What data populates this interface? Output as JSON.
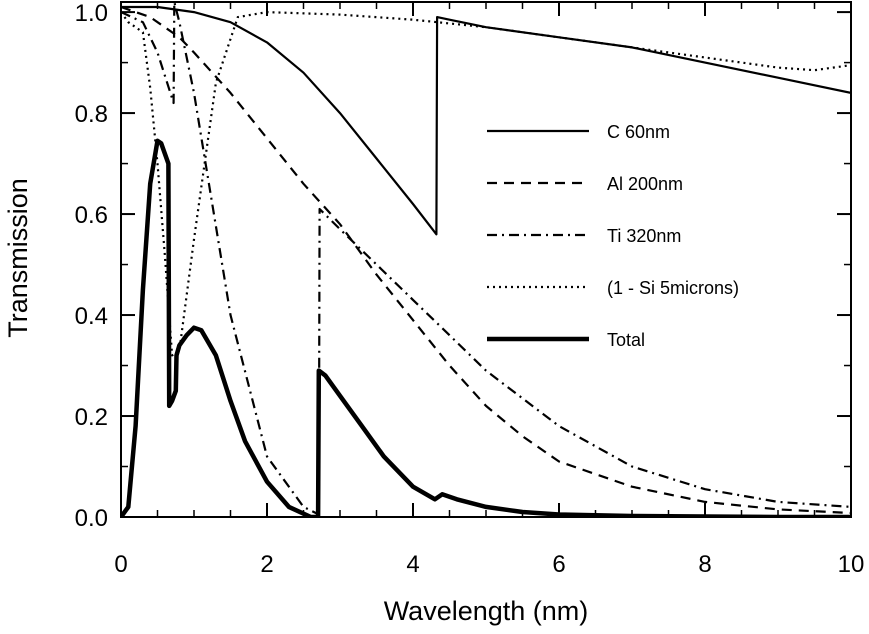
{
  "chart_data": {
    "type": "line",
    "title": "",
    "xlabel": "Wavelength (nm)",
    "ylabel": "Transmission",
    "xlim": [
      0,
      10
    ],
    "ylim": [
      0,
      1.02
    ],
    "grid": false,
    "legend_position": "center-right",
    "x_ticks": [
      {
        "value": 0,
        "label": "0"
      },
      {
        "value": 2,
        "label": "2"
      },
      {
        "value": 4,
        "label": "4"
      },
      {
        "value": 6,
        "label": "6"
      },
      {
        "value": 8,
        "label": "8"
      },
      {
        "value": 10,
        "label": "10"
      }
    ],
    "y_ticks": [
      {
        "value": 0.0,
        "label": "0.0"
      },
      {
        "value": 0.2,
        "label": "0.2"
      },
      {
        "value": 0.4,
        "label": "0.4"
      },
      {
        "value": 0.6,
        "label": "0.6"
      },
      {
        "value": 0.8,
        "label": "0.8"
      },
      {
        "value": 1.0,
        "label": "1.0"
      }
    ],
    "series": [
      {
        "name": "C 60nm",
        "style": "solid",
        "color": "#000000",
        "x": [
          0.0,
          0.5,
          1.0,
          1.5,
          2.0,
          2.5,
          3.0,
          3.5,
          4.0,
          4.32,
          4.33,
          4.5,
          5.0,
          6.0,
          7.0,
          8.0,
          9.0,
          10.0
        ],
        "y": [
          1.01,
          1.01,
          1.0,
          0.98,
          0.94,
          0.88,
          0.8,
          0.71,
          0.62,
          0.56,
          0.99,
          0.985,
          0.97,
          0.95,
          0.93,
          0.9,
          0.87,
          0.84
        ]
      },
      {
        "name": "Al 200nm",
        "style": "dashed",
        "color": "#000000",
        "x": [
          0.0,
          0.2,
          0.4,
          0.6,
          0.8,
          1.0,
          1.5,
          2.0,
          2.5,
          3.0,
          3.5,
          4.0,
          4.5,
          5.0,
          5.5,
          6.0,
          7.0,
          8.0,
          9.0,
          10.0
        ],
        "y": [
          1.01,
          1.0,
          0.99,
          0.97,
          0.95,
          0.92,
          0.84,
          0.75,
          0.66,
          0.58,
          0.48,
          0.39,
          0.3,
          0.22,
          0.16,
          0.11,
          0.06,
          0.03,
          0.015,
          0.008
        ]
      },
      {
        "name": "Ti 320nm",
        "style": "dashdot",
        "color": "#000000",
        "x": [
          0.0,
          0.3,
          0.5,
          0.72,
          0.73,
          0.8,
          1.0,
          1.5,
          2.0,
          2.5,
          2.71,
          2.72,
          3.0,
          3.5,
          4.0,
          4.5,
          5.0,
          6.0,
          7.0,
          8.0,
          9.0,
          10.0
        ],
        "y": [
          1.0,
          0.98,
          0.92,
          0.82,
          1.02,
          0.98,
          0.84,
          0.4,
          0.12,
          0.02,
          0.005,
          0.61,
          0.57,
          0.5,
          0.43,
          0.36,
          0.29,
          0.18,
          0.1,
          0.055,
          0.03,
          0.02
        ]
      },
      {
        "name": "(1 - Si 5microns)",
        "style": "dotted",
        "color": "#000000",
        "x": [
          0.0,
          0.1,
          0.2,
          0.3,
          0.4,
          0.5,
          0.6,
          0.7,
          0.8,
          1.0,
          1.3,
          1.6,
          2.0,
          3.0,
          4.0,
          5.0,
          6.0,
          7.0,
          8.0,
          9.0,
          9.5,
          10.0
        ],
        "y": [
          1.0,
          0.98,
          0.97,
          0.96,
          0.85,
          0.7,
          0.52,
          0.32,
          0.33,
          0.55,
          0.86,
          0.99,
          1.0,
          0.995,
          0.985,
          0.97,
          0.95,
          0.93,
          0.91,
          0.89,
          0.885,
          0.895
        ]
      },
      {
        "name": "Total",
        "style": "thick",
        "color": "#000000",
        "x": [
          0.0,
          0.1,
          0.2,
          0.3,
          0.4,
          0.5,
          0.55,
          0.6,
          0.65,
          0.66,
          0.7,
          0.75,
          0.76,
          0.8,
          0.9,
          1.0,
          1.1,
          1.3,
          1.5,
          1.7,
          2.0,
          2.3,
          2.6,
          2.7,
          2.71,
          2.8,
          3.0,
          3.3,
          3.6,
          4.0,
          4.3,
          4.4,
          4.6,
          5.0,
          5.5,
          6.0,
          7.0,
          8.0,
          9.0,
          10.0
        ],
        "y": [
          0.0,
          0.02,
          0.18,
          0.45,
          0.66,
          0.745,
          0.74,
          0.72,
          0.7,
          0.22,
          0.23,
          0.25,
          0.32,
          0.34,
          0.36,
          0.375,
          0.37,
          0.32,
          0.23,
          0.15,
          0.07,
          0.02,
          0.0,
          0.0,
          0.29,
          0.28,
          0.24,
          0.18,
          0.12,
          0.06,
          0.035,
          0.045,
          0.035,
          0.02,
          0.01,
          0.005,
          0.002,
          0.001,
          0.0,
          0.0
        ]
      }
    ]
  }
}
